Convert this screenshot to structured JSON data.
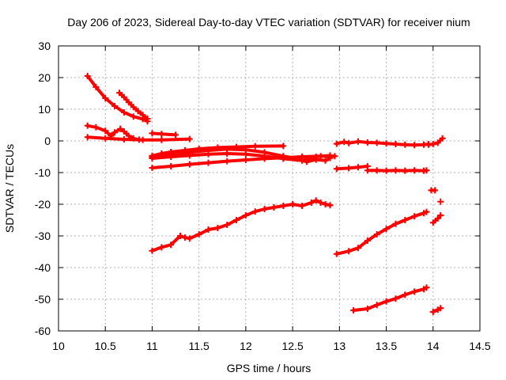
{
  "chart_data": {
    "type": "scatter",
    "title": "Day 206 of 2023, Sidereal Day-to-day VTEC variation (SDTVAR) for receiver nium",
    "xlabel": "GPS time / hours",
    "ylabel": "SDTVAR / TECUs",
    "xlim": [
      10,
      14.5
    ],
    "ylim": [
      -60,
      30
    ],
    "xticks": [
      10,
      10.5,
      11,
      11.5,
      12,
      12.5,
      13,
      13.5,
      14,
      14.5
    ],
    "yticks": [
      -60,
      -50,
      -40,
      -30,
      -20,
      -10,
      0,
      10,
      20,
      30
    ],
    "xtick_labels": [
      "10",
      "10.5",
      "11",
      "11.5",
      "12",
      "12.5",
      "13",
      "13.5",
      "14",
      "14.5"
    ],
    "ytick_labels": [
      "-60",
      "-50",
      "-40",
      "-30",
      "-20",
      "-10",
      "0",
      "10",
      "20",
      "30"
    ],
    "grid": true,
    "color": "#ff0000",
    "marker": "plus",
    "series": [
      {
        "name": "s1",
        "x": [
          10.31,
          10.4,
          10.5,
          10.6,
          10.7,
          10.8,
          10.9,
          10.95
        ],
        "y": [
          20.5,
          17,
          13.5,
          11,
          9,
          7.7,
          6.9,
          6.2
        ]
      },
      {
        "name": "s2",
        "x": [
          10.65,
          10.7,
          10.75,
          10.8,
          10.85,
          10.9,
          10.95
        ],
        "y": [
          15.2,
          13.8,
          12.2,
          10.7,
          9.4,
          8.2,
          7.0
        ]
      },
      {
        "name": "s3",
        "x": [
          10.31,
          10.4,
          10.5,
          10.56,
          10.6,
          10.66,
          10.7,
          10.75,
          10.8,
          10.86
        ],
        "y": [
          4.8,
          4.3,
          3.2,
          1.6,
          2.7,
          3.8,
          3.0,
          1.6,
          0.8,
          0.4
        ]
      },
      {
        "name": "s4",
        "x": [
          10.31,
          10.5,
          10.7,
          10.9,
          11.1,
          11.4
        ],
        "y": [
          1.2,
          0.8,
          0.5,
          0.3,
          0.3,
          0.6
        ]
      },
      {
        "name": "s5",
        "x": [
          11.0,
          11.1,
          11.25
        ],
        "y": [
          2.4,
          2.2,
          1.9
        ]
      },
      {
        "name": "s6",
        "x": [
          11.0,
          11.1,
          11.2,
          11.35,
          11.5,
          11.7,
          11.9,
          12.1,
          12.4
        ],
        "y": [
          -4.7,
          -4.0,
          -3.5,
          -3.0,
          -2.5,
          -2.1,
          -1.9,
          -1.7,
          -1.6
        ]
      },
      {
        "name": "s7",
        "x": [
          11.0,
          11.2,
          11.4,
          11.6,
          11.8,
          12.0,
          12.2,
          12.4,
          12.6,
          12.8,
          12.95
        ],
        "y": [
          -8.5,
          -8.0,
          -7.4,
          -6.9,
          -6.4,
          -6.0,
          -5.6,
          -5.3,
          -5.0,
          -4.8,
          -4.8
        ]
      },
      {
        "name": "s8",
        "x": [
          11.0,
          11.2,
          11.4,
          11.6,
          11.8,
          12.0,
          12.2,
          12.4,
          12.55,
          12.65,
          12.75,
          12.85,
          12.9
        ],
        "y": [
          -5.0,
          -4.4,
          -3.6,
          -3.0,
          -2.6,
          -2.8,
          -3.6,
          -4.8,
          -5.6,
          -6.6,
          -5.9,
          -6.2,
          -5.4
        ]
      },
      {
        "name": "s9",
        "x": [
          11.0,
          11.2,
          11.4,
          11.6,
          11.8,
          12.0,
          12.2,
          12.4,
          12.6,
          12.75,
          12.9
        ],
        "y": [
          -5.5,
          -5.0,
          -4.6,
          -4.2,
          -4.0,
          -4.2,
          -4.8,
          -5.6,
          -6.2,
          -5.0,
          -4.6
        ]
      },
      {
        "name": "s10",
        "x": [
          11.0,
          11.1,
          11.2,
          11.3,
          11.35,
          11.4,
          11.5,
          11.6,
          11.7,
          11.8,
          11.9,
          12.0,
          12.1,
          12.2,
          12.3,
          12.4,
          12.5,
          12.6,
          12.7,
          12.75,
          12.8,
          12.85,
          12.9
        ],
        "y": [
          -34.7,
          -33.6,
          -32.8,
          -30.0,
          -30.5,
          -30.8,
          -29.5,
          -28.0,
          -27.5,
          -26.5,
          -25.0,
          -23.5,
          -22.3,
          -21.5,
          -21.0,
          -20.5,
          -20.0,
          -20.5,
          -19.5,
          -18.8,
          -19.5,
          -20.0,
          -20.3
        ]
      },
      {
        "name": "s11",
        "x": [
          12.97,
          13.05,
          13.1,
          13.2,
          13.3,
          13.4,
          13.5,
          13.6,
          13.7,
          13.8,
          13.9,
          13.95
        ],
        "y": [
          -0.9,
          -0.3,
          -0.7,
          -0.2,
          -0.5,
          -0.6,
          -0.8,
          -1.0,
          -1.2,
          -1.3,
          -1.2,
          -1.0
        ]
      },
      {
        "name": "s12",
        "x": [
          13.95,
          14.0,
          14.05,
          14.1
        ],
        "y": [
          -1.2,
          -1.0,
          -0.6,
          0.8
        ]
      },
      {
        "name": "s13",
        "x": [
          12.97,
          13.1,
          13.2,
          13.3
        ],
        "y": [
          -8.8,
          -8.6,
          -8.3,
          -8.0
        ]
      },
      {
        "name": "s14",
        "x": [
          13.3,
          13.4,
          13.5,
          13.6,
          13.7,
          13.8,
          13.9,
          13.93
        ],
        "y": [
          -9.3,
          -9.3,
          -9.4,
          -9.3,
          -9.4,
          -9.3,
          -9.4,
          -9.3
        ]
      },
      {
        "name": "s15",
        "x": [
          13.98,
          14.02
        ],
        "y": [
          -15.6,
          -15.6
        ]
      },
      {
        "name": "s16",
        "x": [
          14.08
        ],
        "y": [
          -19.2
        ]
      },
      {
        "name": "s17",
        "x": [
          14.0,
          14.05,
          14.08
        ],
        "y": [
          -25.8,
          -24.5,
          -23.5
        ]
      },
      {
        "name": "s18",
        "x": [
          12.97,
          13.1,
          13.2,
          13.3,
          13.4,
          13.5,
          13.6,
          13.7,
          13.8,
          13.9,
          13.93
        ],
        "y": [
          -35.7,
          -34.8,
          -33.8,
          -31.5,
          -29.5,
          -27.8,
          -26.2,
          -25.0,
          -23.8,
          -22.8,
          -22.4
        ]
      },
      {
        "name": "s19",
        "x": [
          13.15,
          13.3,
          13.4,
          13.5,
          13.6,
          13.7,
          13.8,
          13.9,
          13.93
        ],
        "y": [
          -53.5,
          -53.0,
          -51.8,
          -50.7,
          -49.8,
          -48.6,
          -47.6,
          -46.8,
          -46.3
        ]
      },
      {
        "name": "s20",
        "x": [
          14.0,
          14.05,
          14.08
        ],
        "y": [
          -54.0,
          -53.3,
          -52.8
        ]
      }
    ]
  }
}
